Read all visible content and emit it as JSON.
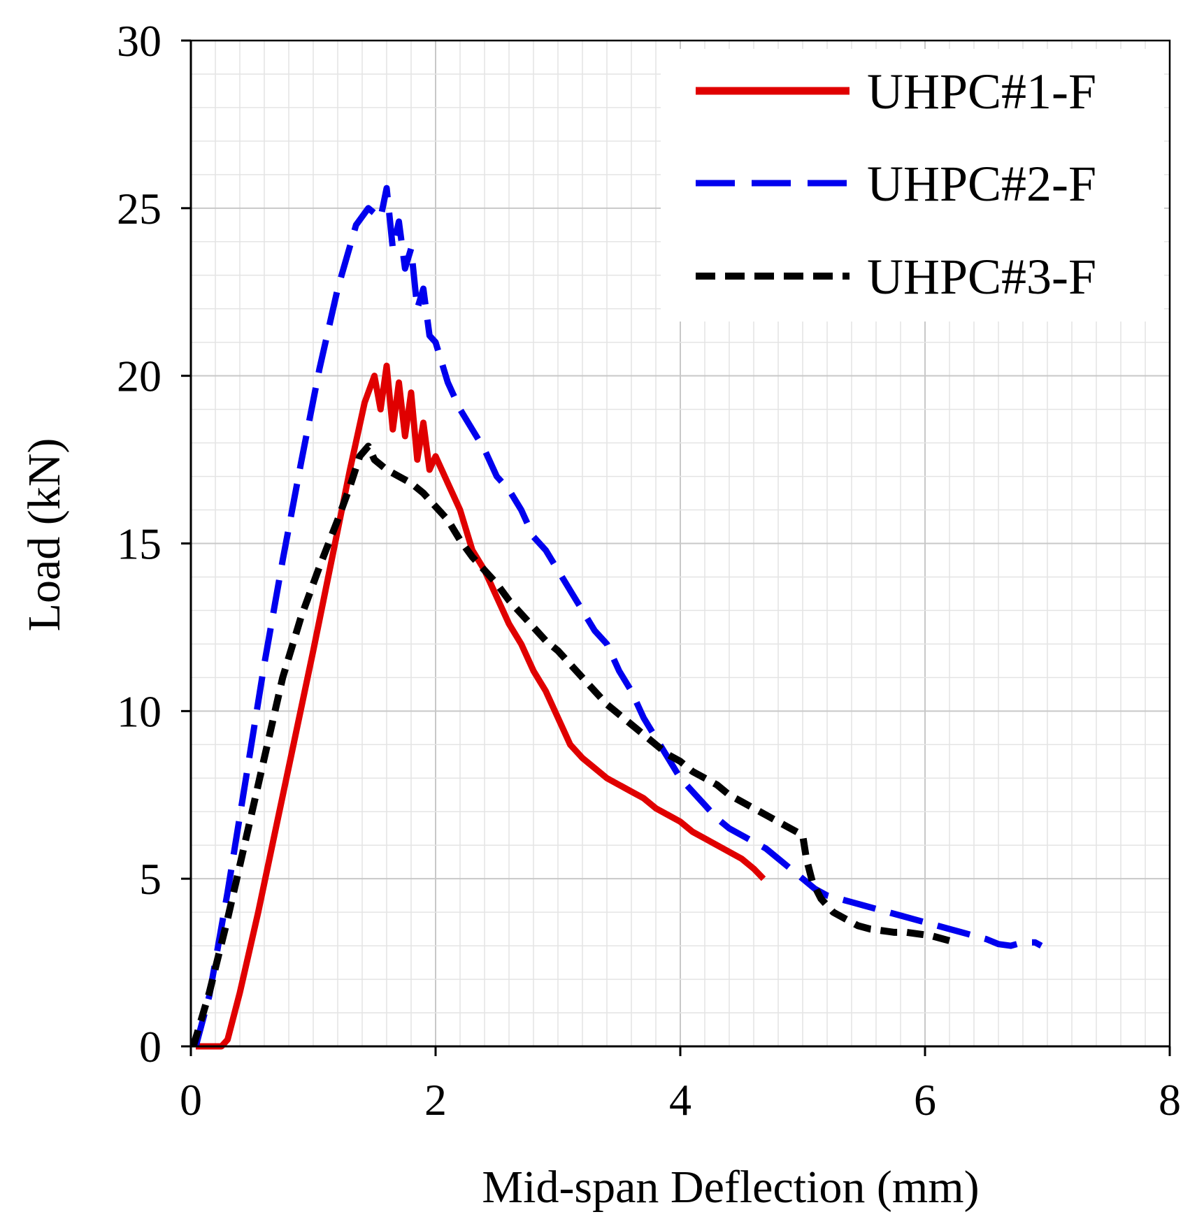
{
  "chart_data": {
    "type": "line",
    "title": "",
    "xlabel": "Mid-span Deflection (mm)",
    "ylabel": "Load (kN)",
    "xlim": [
      0,
      8
    ],
    "ylim": [
      0,
      30
    ],
    "xticks": [
      "0",
      "2",
      "4",
      "6",
      "8"
    ],
    "yticks": [
      "0",
      "5",
      "10",
      "15",
      "20",
      "25",
      "30"
    ],
    "grid": true,
    "legend_position": "top-right",
    "series": [
      {
        "name": "UHPC#1-F",
        "color": "#e00000",
        "dash": "solid",
        "x": [
          0.04,
          0.25,
          0.3,
          0.4,
          0.55,
          0.7,
          0.85,
          1.0,
          1.15,
          1.3,
          1.42,
          1.5,
          1.55,
          1.6,
          1.65,
          1.7,
          1.75,
          1.8,
          1.85,
          1.9,
          1.95,
          2.0,
          2.1,
          2.2,
          2.3,
          2.4,
          2.5,
          2.6,
          2.7,
          2.8,
          2.9,
          3.0,
          3.1,
          3.2,
          3.3,
          3.4,
          3.5,
          3.6,
          3.7,
          3.8,
          3.9,
          4.0,
          4.1,
          4.2,
          4.3,
          4.4,
          4.5,
          4.6,
          4.68
        ],
        "y": [
          0,
          0,
          0.2,
          1.6,
          4.0,
          6.6,
          9.2,
          11.8,
          14.5,
          17.2,
          19.2,
          20.0,
          19.0,
          20.3,
          18.4,
          19.8,
          18.2,
          19.5,
          17.5,
          18.6,
          17.2,
          17.6,
          16.8,
          16.0,
          14.8,
          14.2,
          13.4,
          12.6,
          12.0,
          11.2,
          10.6,
          9.8,
          9.0,
          8.6,
          8.3,
          8.0,
          7.8,
          7.6,
          7.4,
          7.1,
          6.9,
          6.7,
          6.4,
          6.2,
          6.0,
          5.8,
          5.6,
          5.3,
          5.0
        ]
      },
      {
        "name": "UHPC#2-F",
        "color": "#0000ee",
        "dash": "dashed",
        "x": [
          0.04,
          0.15,
          0.3,
          0.45,
          0.6,
          0.75,
          0.9,
          1.05,
          1.2,
          1.35,
          1.45,
          1.55,
          1.6,
          1.65,
          1.7,
          1.75,
          1.8,
          1.85,
          1.9,
          1.95,
          2.0,
          2.1,
          2.2,
          2.3,
          2.4,
          2.5,
          2.6,
          2.7,
          2.8,
          2.9,
          3.0,
          3.1,
          3.2,
          3.3,
          3.4,
          3.5,
          3.6,
          3.7,
          3.8,
          3.9,
          4.0,
          4.1,
          4.2,
          4.3,
          4.4,
          4.5,
          4.6,
          4.7,
          4.8,
          4.9,
          5.0,
          5.1,
          5.2,
          5.3,
          5.4,
          5.5,
          5.6,
          5.7,
          5.8,
          5.9,
          6.0,
          6.1,
          6.2,
          6.3,
          6.4,
          6.5,
          6.6,
          6.7,
          6.8,
          6.9,
          6.95
        ],
        "y": [
          0,
          1.5,
          4.6,
          8.0,
          11.4,
          14.5,
          17.4,
          20.2,
          22.6,
          24.5,
          25.0,
          24.7,
          25.6,
          23.8,
          24.6,
          23.2,
          23.8,
          22.0,
          22.6,
          21.2,
          21.0,
          19.8,
          19.0,
          18.4,
          17.8,
          17.0,
          16.6,
          16.0,
          15.2,
          14.8,
          14.2,
          13.6,
          13.0,
          12.4,
          12.0,
          11.2,
          10.6,
          9.8,
          9.2,
          8.6,
          8.0,
          7.6,
          7.2,
          6.8,
          6.5,
          6.3,
          6.1,
          5.9,
          5.6,
          5.3,
          5.0,
          4.7,
          4.5,
          4.4,
          4.3,
          4.2,
          4.1,
          4.0,
          3.9,
          3.8,
          3.7,
          3.6,
          3.5,
          3.4,
          3.3,
          3.2,
          3.05,
          3.0,
          3.1,
          3.1,
          3.0
        ]
      },
      {
        "name": "UHPC#3-F",
        "color": "#000000",
        "dash": "dotted",
        "x": [
          0.02,
          0.15,
          0.3,
          0.45,
          0.6,
          0.75,
          0.9,
          1.05,
          1.2,
          1.3,
          1.38,
          1.45,
          1.5,
          1.6,
          1.7,
          1.8,
          1.9,
          2.0,
          2.1,
          2.2,
          2.3,
          2.4,
          2.5,
          2.6,
          2.7,
          2.8,
          2.9,
          3.0,
          3.1,
          3.2,
          3.3,
          3.4,
          3.5,
          3.6,
          3.7,
          3.8,
          3.9,
          4.0,
          4.1,
          4.2,
          4.3,
          4.4,
          4.5,
          4.6,
          4.7,
          4.8,
          4.9,
          5.0,
          5.03,
          5.08,
          5.15,
          5.25,
          5.35,
          5.45,
          5.55,
          5.65,
          5.75,
          5.85,
          5.95,
          6.05,
          6.15,
          6.25
        ],
        "y": [
          0,
          1.6,
          3.8,
          6.2,
          8.6,
          11.0,
          12.8,
          14.3,
          15.7,
          16.7,
          17.6,
          17.9,
          17.5,
          17.2,
          17.0,
          16.8,
          16.5,
          16.1,
          15.7,
          15.1,
          14.6,
          14.2,
          13.8,
          13.3,
          12.9,
          12.5,
          12.1,
          11.8,
          11.4,
          11.0,
          10.6,
          10.2,
          9.9,
          9.6,
          9.3,
          9.0,
          8.7,
          8.5,
          8.2,
          8.0,
          7.8,
          7.5,
          7.3,
          7.1,
          6.9,
          6.7,
          6.5,
          6.3,
          5.6,
          4.9,
          4.4,
          4.0,
          3.8,
          3.6,
          3.5,
          3.45,
          3.4,
          3.4,
          3.35,
          3.3,
          3.2,
          3.1
        ]
      }
    ]
  }
}
